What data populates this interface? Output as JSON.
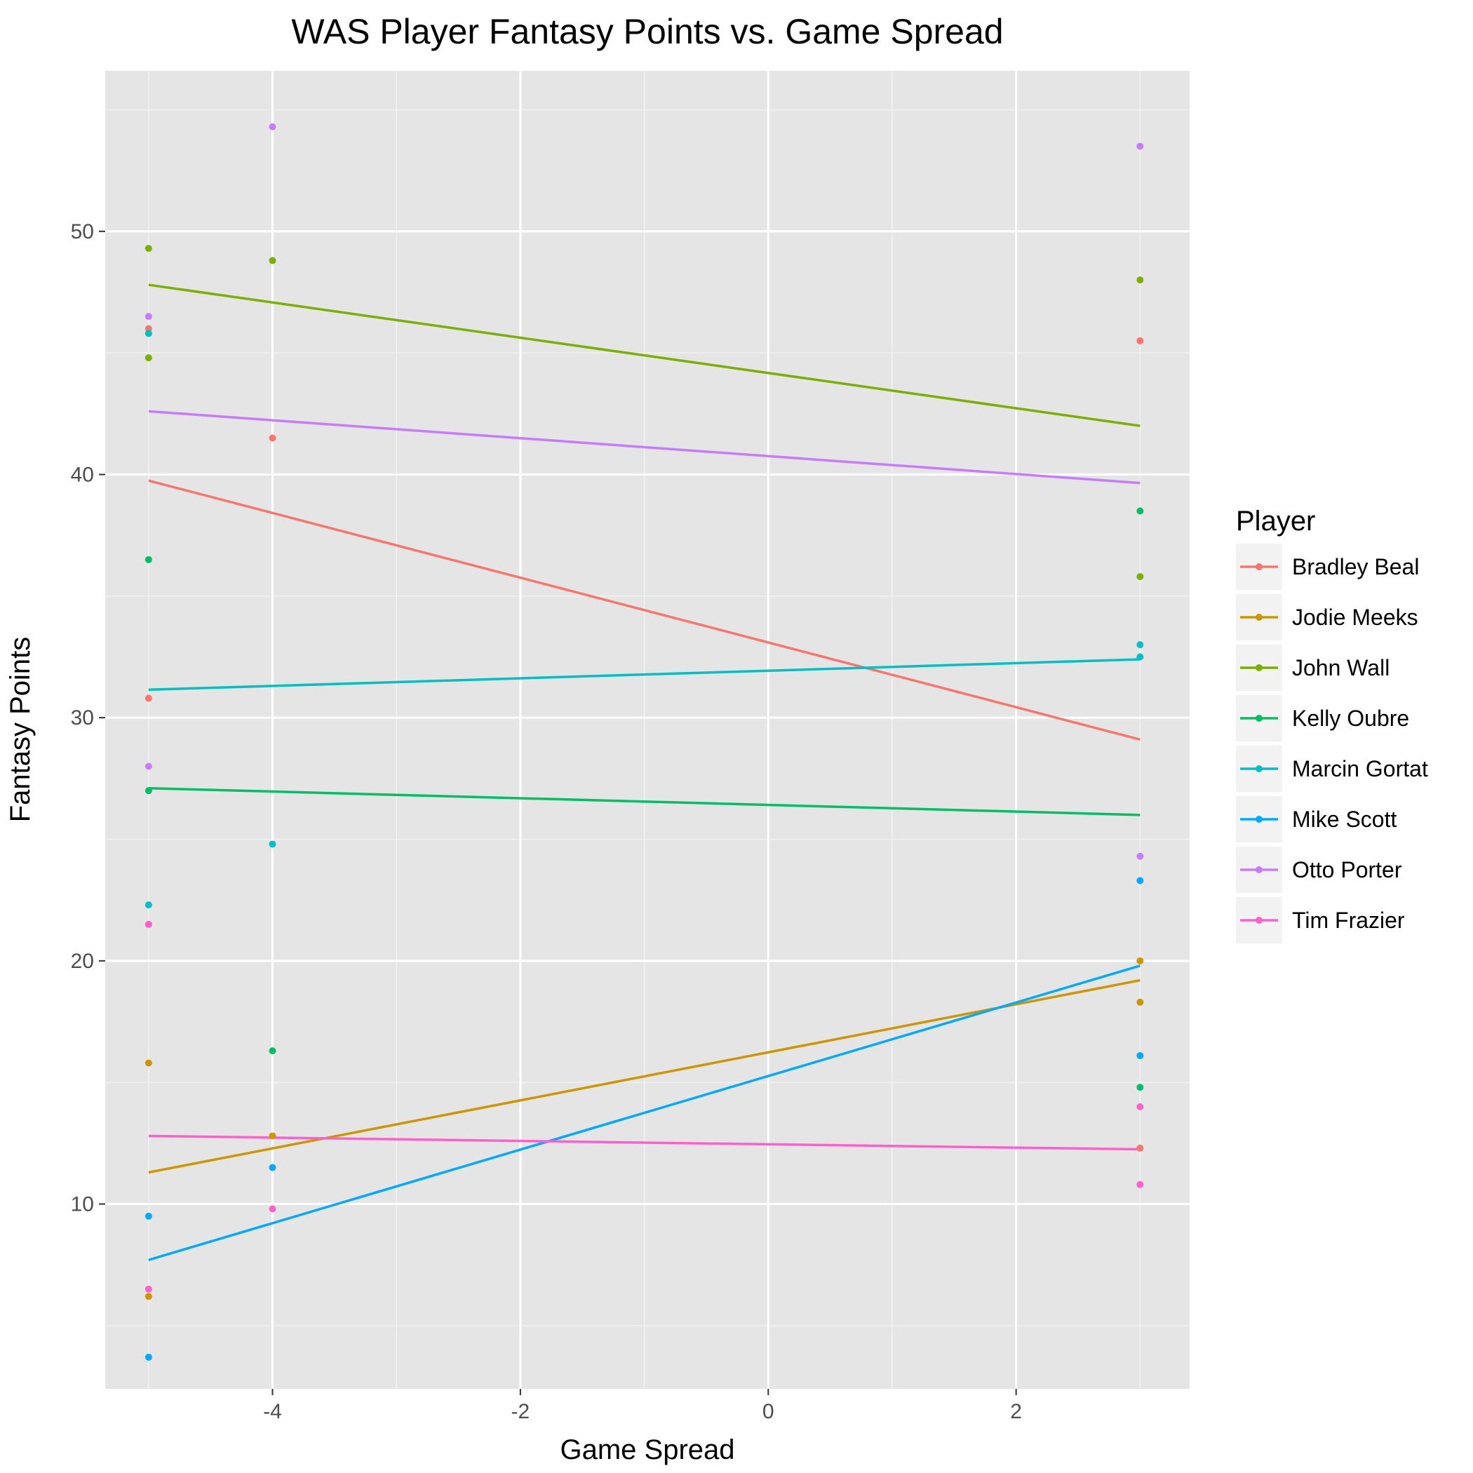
{
  "chart_data": {
    "type": "scatter",
    "title": "WAS Player Fantasy Points vs. Game Spread",
    "xlabel": "Game Spread",
    "ylabel": "Fantasy Points",
    "xlim": [
      -5.35,
      3.4
    ],
    "ylim": [
      2.4,
      56.6
    ],
    "x_ticks": [
      -4,
      -2,
      0,
      2
    ],
    "x_tick_labels": [
      "-4",
      "-2",
      "0",
      "2"
    ],
    "y_ticks": [
      10,
      20,
      30,
      40,
      50
    ],
    "y_tick_labels": [
      "10",
      "20",
      "30",
      "40",
      "50"
    ],
    "grid": true,
    "panel_background": "#e5e5e5",
    "legend": {
      "title": "Player",
      "placement": "right"
    },
    "series": [
      {
        "name": "Bradley Beal",
        "color": "#f8766d",
        "points": [
          [
            -5,
            46.0
          ],
          [
            -5,
            30.8
          ],
          [
            -4,
            41.5
          ],
          [
            3,
            45.5
          ],
          [
            3,
            12.3
          ]
        ],
        "trend": [
          [
            -5,
            39.75
          ],
          [
            3,
            29.1
          ]
        ]
      },
      {
        "name": "Jodie Meeks",
        "color": "#cd9600",
        "points": [
          [
            -5,
            15.8
          ],
          [
            -5,
            6.2
          ],
          [
            -4,
            12.8
          ],
          [
            3,
            20.0
          ],
          [
            3,
            18.3
          ]
        ],
        "trend": [
          [
            -5,
            11.3
          ],
          [
            3,
            19.2
          ]
        ]
      },
      {
        "name": "John Wall",
        "color": "#7cae00",
        "points": [
          [
            -5,
            49.3
          ],
          [
            -5,
            44.8
          ],
          [
            -4,
            48.8
          ],
          [
            3,
            48.0
          ],
          [
            3,
            35.8
          ]
        ],
        "trend": [
          [
            -5,
            47.8
          ],
          [
            3,
            42.0
          ]
        ]
      },
      {
        "name": "Kelly Oubre",
        "color": "#00be67",
        "points": [
          [
            -5,
            36.5
          ],
          [
            -5,
            27.0
          ],
          [
            -4,
            16.3
          ],
          [
            3,
            38.5
          ],
          [
            3,
            14.8
          ]
        ],
        "trend": [
          [
            -5,
            27.1
          ],
          [
            3,
            26.0
          ]
        ]
      },
      {
        "name": "Marcin Gortat",
        "color": "#00bfc4",
        "points": [
          [
            -5,
            45.8
          ],
          [
            -5,
            22.3
          ],
          [
            -4,
            24.8
          ],
          [
            3,
            33.0
          ],
          [
            3,
            32.5
          ]
        ],
        "trend": [
          [
            -5,
            31.15
          ],
          [
            3,
            32.4
          ]
        ]
      },
      {
        "name": "Mike Scott",
        "color": "#00a9ff",
        "points": [
          [
            -5,
            9.5
          ],
          [
            -5,
            3.7
          ],
          [
            -4,
            11.5
          ],
          [
            3,
            23.3
          ],
          [
            3,
            16.1
          ]
        ],
        "trend": [
          [
            -5,
            7.7
          ],
          [
            3,
            19.8
          ]
        ]
      },
      {
        "name": "Otto Porter",
        "color": "#c77cff",
        "points": [
          [
            -5,
            46.5
          ],
          [
            -5,
            28.0
          ],
          [
            -4,
            54.3
          ],
          [
            3,
            53.5
          ],
          [
            3,
            24.3
          ]
        ],
        "trend": [
          [
            -5,
            42.6
          ],
          [
            3,
            39.65
          ]
        ]
      },
      {
        "name": "Tim Frazier",
        "color": "#ff61cc",
        "points": [
          [
            -5,
            21.5
          ],
          [
            -5,
            6.5
          ],
          [
            -4,
            9.8
          ],
          [
            3,
            14.0
          ],
          [
            3,
            10.8
          ]
        ],
        "trend": [
          [
            -5,
            12.8
          ],
          [
            3,
            12.25
          ]
        ]
      }
    ]
  }
}
